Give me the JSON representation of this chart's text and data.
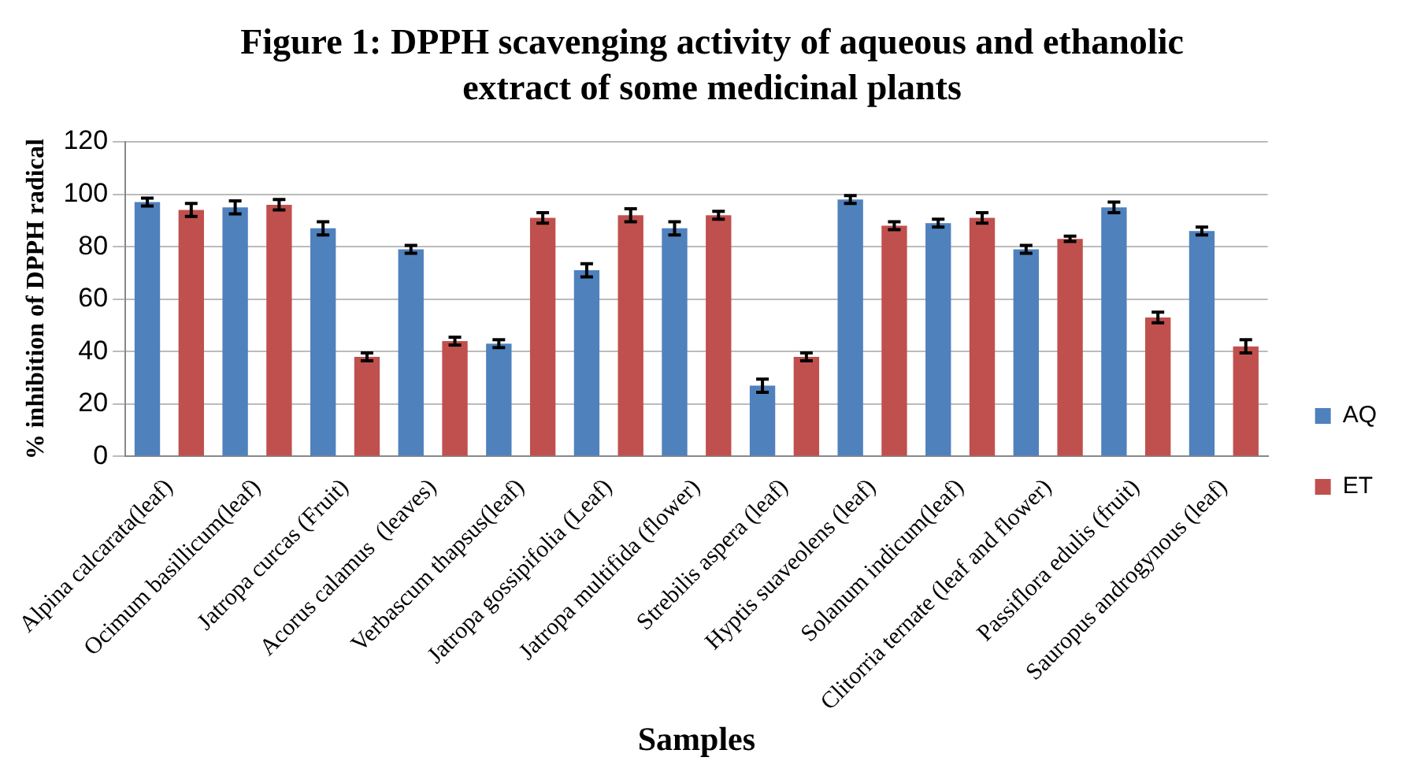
{
  "chart_data": {
    "type": "bar",
    "title": "Figure 1: DPPH scavenging activity of  aqueous and ethanolic extract of some medicinal plants",
    "xlabel": "Samples",
    "ylabel": "% inhibition of DPPH radical",
    "categories": [
      "Alpina calcarata(leaf)",
      "Ocimum basillicum(leaf)",
      "Jatropa curcas (Fruit)",
      "Acorus calamus  (leaves)",
      "Verbascum thapsus(leaf)",
      "Jatropa gossipifolia (Leaf)",
      "Jatropa multifida (flower)",
      "Strebilis aspera (leaf)",
      "Hyptis suaveolens (leaf)",
      "Solanum indicum(leaf)",
      "Clitorria ternate (leaf and flower)",
      "Passiflora edulis (fruit)",
      "Sauropus androgynous (leaf)"
    ],
    "series": [
      {
        "name": "AQ",
        "color": "#4f81bd",
        "values": [
          97,
          95,
          87,
          79,
          43,
          71,
          87,
          27,
          98,
          89,
          79,
          95,
          86
        ],
        "errors": [
          1.5,
          2.5,
          2.5,
          1.5,
          1.5,
          2.5,
          2.5,
          2.5,
          1.5,
          1.5,
          1.5,
          2,
          1.5
        ]
      },
      {
        "name": "ET",
        "color": "#c0504d",
        "values": [
          94,
          96,
          38,
          44,
          91,
          92,
          92,
          38,
          88,
          91,
          83,
          53,
          42
        ],
        "errors": [
          2.5,
          2,
          1.5,
          1.5,
          2,
          2.5,
          1.5,
          1.5,
          1.5,
          2,
          1,
          2,
          2.5
        ]
      }
    ],
    "ylim": [
      0,
      120
    ],
    "yticks": [
      0,
      20,
      40,
      60,
      80,
      100,
      120
    ],
    "grid": "y",
    "legend": "right"
  }
}
